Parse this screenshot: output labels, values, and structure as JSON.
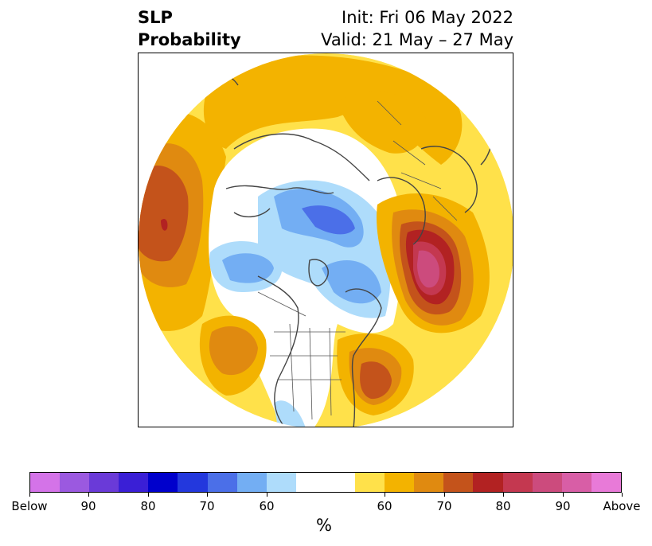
{
  "title": {
    "left_line1": "SLP",
    "left_line2": "Probability",
    "right_line1": "Init: Fri 06 May 2022",
    "right_line2": "Valid: 21 May – 27 May"
  },
  "map": {
    "projection": "north-polar-stereographic",
    "features": [
      "coastlines",
      "country-borders",
      "state-borders"
    ],
    "probability_regions": [
      {
        "region": "north-pacific",
        "category": "above",
        "peak_level": 85
      },
      {
        "region": "north-atlantic-europe",
        "category": "above",
        "peak_level": 85
      },
      {
        "region": "eastern-us-atlantic",
        "category": "above",
        "peak_level": 75
      },
      {
        "region": "western-north-america",
        "category": "above",
        "peak_level": 70
      },
      {
        "region": "arctic-siberia",
        "category": "below",
        "peak_level": 75
      },
      {
        "region": "canadian-arctic",
        "category": "below",
        "peak_level": 65
      },
      {
        "region": "alaska-bering",
        "category": "below",
        "peak_level": 60
      }
    ]
  },
  "colorbar": {
    "unit_label": "%",
    "tick_labels": [
      "Below",
      "90",
      "80",
      "70",
      "60",
      "60",
      "70",
      "80",
      "90",
      "Above"
    ],
    "colors": [
      "#d473e8",
      "#9b59e0",
      "#6a3ad8",
      "#3a1fd6",
      "#0000cc",
      "#2338dd",
      "#4b6fe8",
      "#73aef3",
      "#aedcfb",
      "#ffffff",
      "#ffe14a",
      "#f3b300",
      "#e08a10",
      "#c4531b",
      "#b22222",
      "#c43850",
      "#cc4b7d",
      "#d85ea6",
      "#e87ad8"
    ]
  }
}
